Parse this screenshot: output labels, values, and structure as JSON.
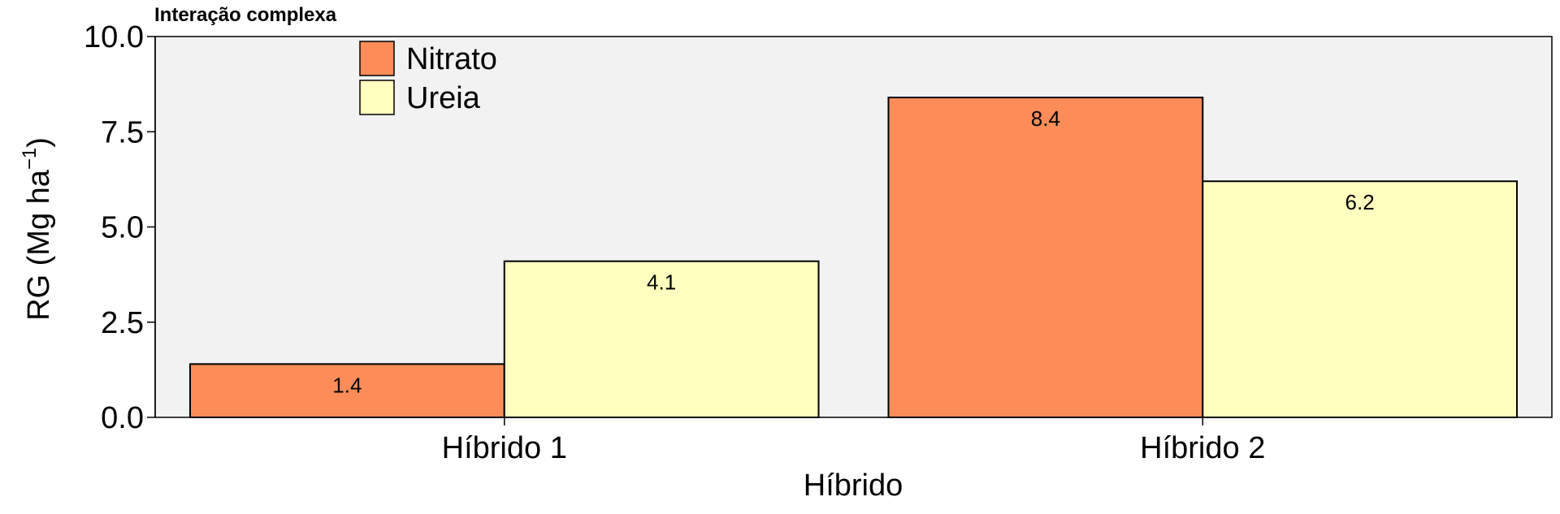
{
  "chart_data": {
    "type": "bar",
    "title": "Interação complexa",
    "xlabel": "Híbrido",
    "ylabel": "RG (Mg ha",
    "ylabel_unit_sup": "−1",
    "ylabel_close": ")",
    "categories": [
      "Híbrido 1",
      "Híbrido 2"
    ],
    "series": [
      {
        "name": "Nitrato",
        "values": [
          1.4,
          8.4
        ],
        "color": "#FC8D59"
      },
      {
        "name": "Ureia",
        "values": [
          4.1,
          6.2
        ],
        "color": "#FFFFBF"
      }
    ],
    "data_labels": [
      [
        "1.4",
        "8.4"
      ],
      [
        "4.1",
        "6.2"
      ]
    ],
    "yticks": [
      0,
      2.5,
      5,
      7.5,
      10
    ],
    "ytick_labels": [
      "0.0",
      "2.5",
      "5.0",
      "7.5",
      "10.0"
    ],
    "ylim": [
      0,
      10
    ],
    "grid": false,
    "legend_position": "top-left",
    "panel_background": "#F2F2F2"
  }
}
